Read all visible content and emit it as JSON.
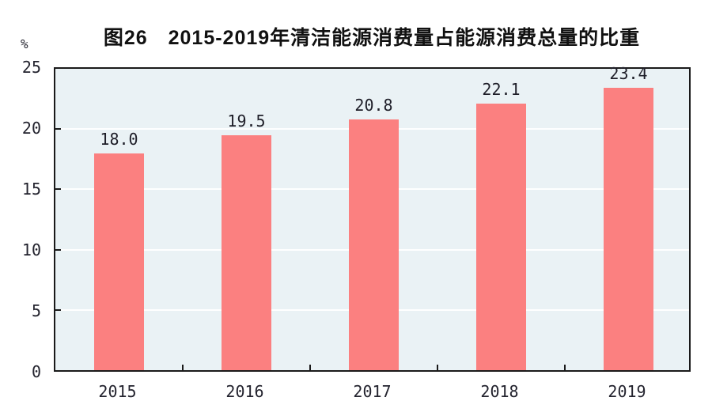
{
  "header": {
    "title": "图26　2015-2019年清洁能源消费量占能源消费总量的比重"
  },
  "chart_data": {
    "type": "bar",
    "title": "图26　2015-2019年清洁能源消费量占能源消费总量的比重",
    "categories": [
      "2015",
      "2016",
      "2017",
      "2018",
      "2019"
    ],
    "values": [
      18.0,
      19.5,
      20.8,
      22.1,
      23.4
    ],
    "value_labels": [
      "18.0",
      "19.5",
      "20.8",
      "22.1",
      "23.4"
    ],
    "xlabel": "",
    "ylabel": "%",
    "ylim": [
      0,
      25
    ],
    "yticks": [
      0,
      5,
      10,
      15,
      20,
      25
    ],
    "grid": true,
    "legend_position": "none",
    "colors": {
      "bar": "#FB8080",
      "plot_background": "#EAF2F5",
      "gridline": "#FFFFFF",
      "frame": "#1A1A1A",
      "text": "#23232E",
      "title_text": "#111111"
    }
  }
}
